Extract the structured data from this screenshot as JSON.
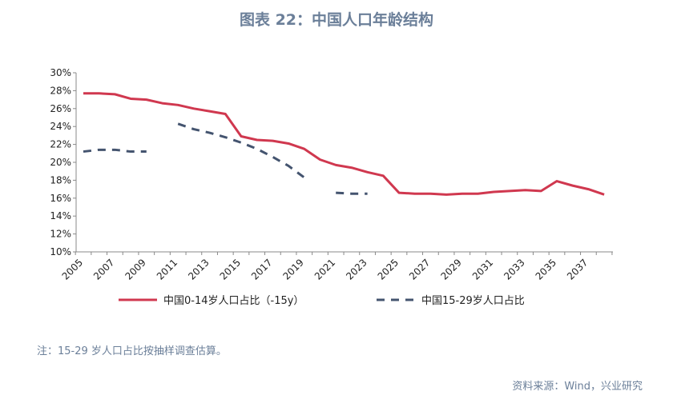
{
  "title": "图表 22：中国人口年龄结构",
  "note": "注：15-29 岁人口占比按抽样调查估算。",
  "source": "资料来源：Wind，兴业研究",
  "chart_data": {
    "type": "line",
    "ylim": [
      10,
      30
    ],
    "yticks": [
      "10%",
      "12%",
      "14%",
      "16%",
      "18%",
      "20%",
      "22%",
      "24%",
      "26%",
      "28%",
      "30%"
    ],
    "xlabels": [
      "2005",
      "2007",
      "2009",
      "2011",
      "2013",
      "2015",
      "2017",
      "2019",
      "2021",
      "2023",
      "2025",
      "2027",
      "2029",
      "2031",
      "2033",
      "2035",
      "2037"
    ],
    "x": [
      2005,
      2006,
      2007,
      2008,
      2009,
      2010,
      2011,
      2012,
      2013,
      2014,
      2015,
      2016,
      2017,
      2018,
      2019,
      2020,
      2021,
      2022,
      2023,
      2024,
      2025,
      2026,
      2027,
      2028,
      2029,
      2030,
      2031,
      2032,
      2033,
      2034,
      2035,
      2036,
      2037,
      2038
    ],
    "legend_position": "bottom",
    "grid": false,
    "series": [
      {
        "name": "中国0-14岁人口占比（-15y）",
        "color": "#d0384f",
        "style": "solid",
        "values": [
          27.7,
          27.7,
          27.6,
          27.1,
          27.0,
          26.6,
          26.4,
          26.0,
          25.7,
          25.4,
          22.9,
          22.5,
          22.4,
          22.1,
          21.5,
          20.3,
          19.7,
          19.4,
          18.9,
          18.5,
          16.6,
          16.5,
          16.5,
          16.4,
          16.5,
          16.5,
          16.7,
          16.8,
          16.9,
          16.8,
          17.9,
          17.4,
          17.0,
          16.4
        ]
      },
      {
        "name": "中国15-29岁人口占比",
        "color": "#44546f",
        "style": "dashed",
        "values": [
          21.2,
          21.4,
          21.4,
          21.2,
          21.2,
          null,
          24.3,
          23.7,
          23.3,
          22.8,
          22.2,
          21.5,
          20.6,
          19.6,
          18.3,
          null,
          16.6,
          16.5,
          16.5,
          null,
          null,
          null,
          null,
          null,
          null,
          null,
          null,
          null,
          null,
          null,
          null,
          null,
          null,
          null
        ]
      }
    ]
  }
}
